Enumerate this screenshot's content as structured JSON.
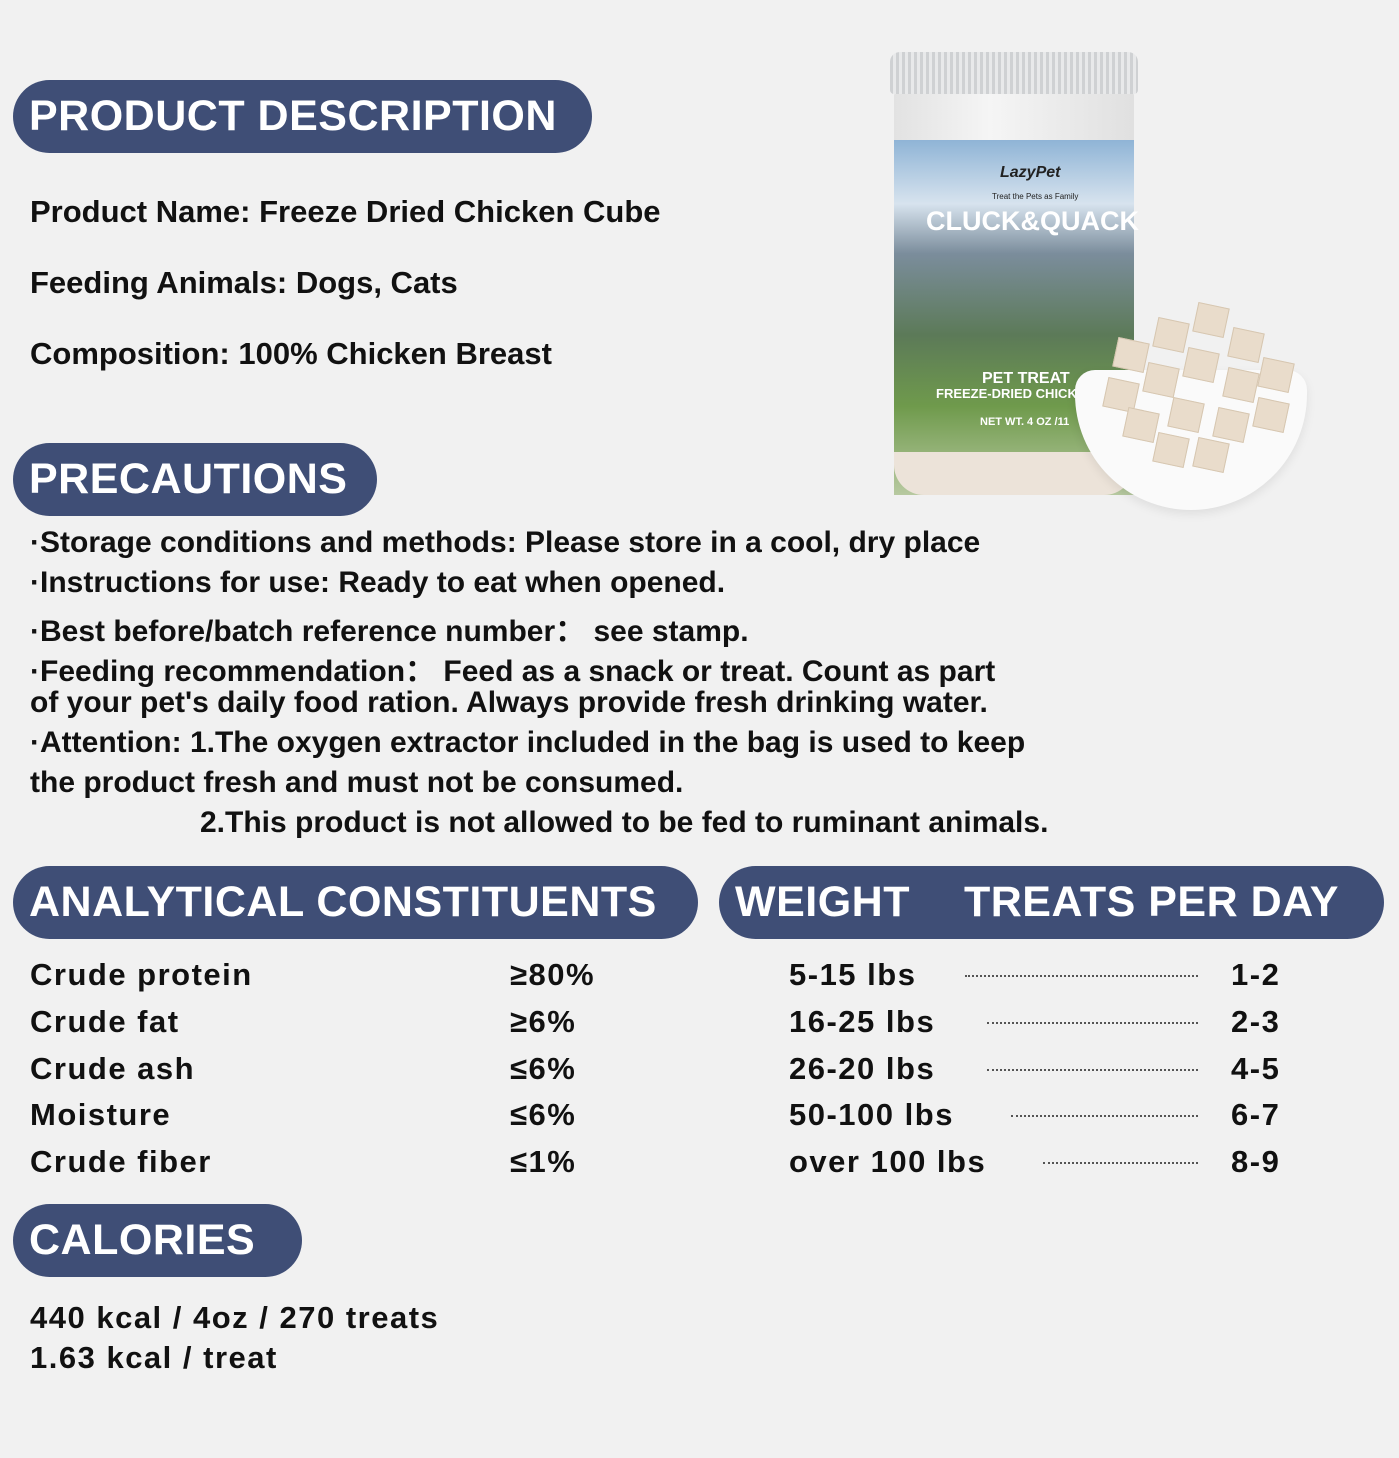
{
  "colors": {
    "accent": "#3f4e76",
    "background": "#f1f1f1"
  },
  "product_description": {
    "heading": "PRODUCT DESCRIPTION",
    "lines": [
      "Product Name: Freeze Dried Chicken Cube",
      "Feeding Animals: Dogs, Cats",
      "Composition: 100% Chicken Breast"
    ]
  },
  "product_image": {
    "brand": "LazyPet",
    "tagline": "Treat the Pets as Family",
    "product_line": "CLUCK&QUACK",
    "label_1": "PET TREAT",
    "label_2": "FREEZE-DRIED CHICK",
    "net_weight": "NET WT. 4 OZ /11"
  },
  "precautions": {
    "heading": "PRECAUTIONS",
    "lines": [
      "·Storage conditions and methods: Please store in a cool, dry place",
      "·Instructions for use: Ready to eat when opened.",
      "·Best before/batch reference number：  see stamp.",
      "·Feeding recommendation：  Feed as a snack or treat.    Count as part",
      "of your pet's daily food ration. Always provide fresh drinking water.",
      "·Attention: 1.The oxygen extractor included in the bag is used to keep",
      "the product fresh and must not be consumed.",
      "2.This product is not allowed to be fed to ruminant animals."
    ]
  },
  "analytical": {
    "heading": "ANALYTICAL CONSTITUENTS",
    "rows": [
      {
        "name": "Crude protein",
        "value": "≥80%"
      },
      {
        "name": "Crude fat",
        "value": "≥6%"
      },
      {
        "name": "Crude ash",
        "value": "≤6%"
      },
      {
        "name": "Moisture",
        "value": "≤6%"
      },
      {
        "name": "Crude fiber",
        "value": "≤1%"
      }
    ]
  },
  "feeding": {
    "heading_weight": "WEIGHT",
    "heading_treats": "TREATS PER DAY",
    "rows": [
      {
        "weight": "5-15 lbs",
        "treats": "1-2"
      },
      {
        "weight": "16-25 lbs",
        "treats": "2-3"
      },
      {
        "weight": "26-20 lbs",
        "treats": "4-5"
      },
      {
        "weight": "50-100 lbs",
        "treats": "6-7"
      },
      {
        "weight": "over 100 lbs",
        "treats": "8-9"
      }
    ]
  },
  "calories": {
    "heading": "CALORIES",
    "lines": [
      "440 kcal / 4oz / 270 treats",
      "1.63 kcal / treat"
    ]
  }
}
